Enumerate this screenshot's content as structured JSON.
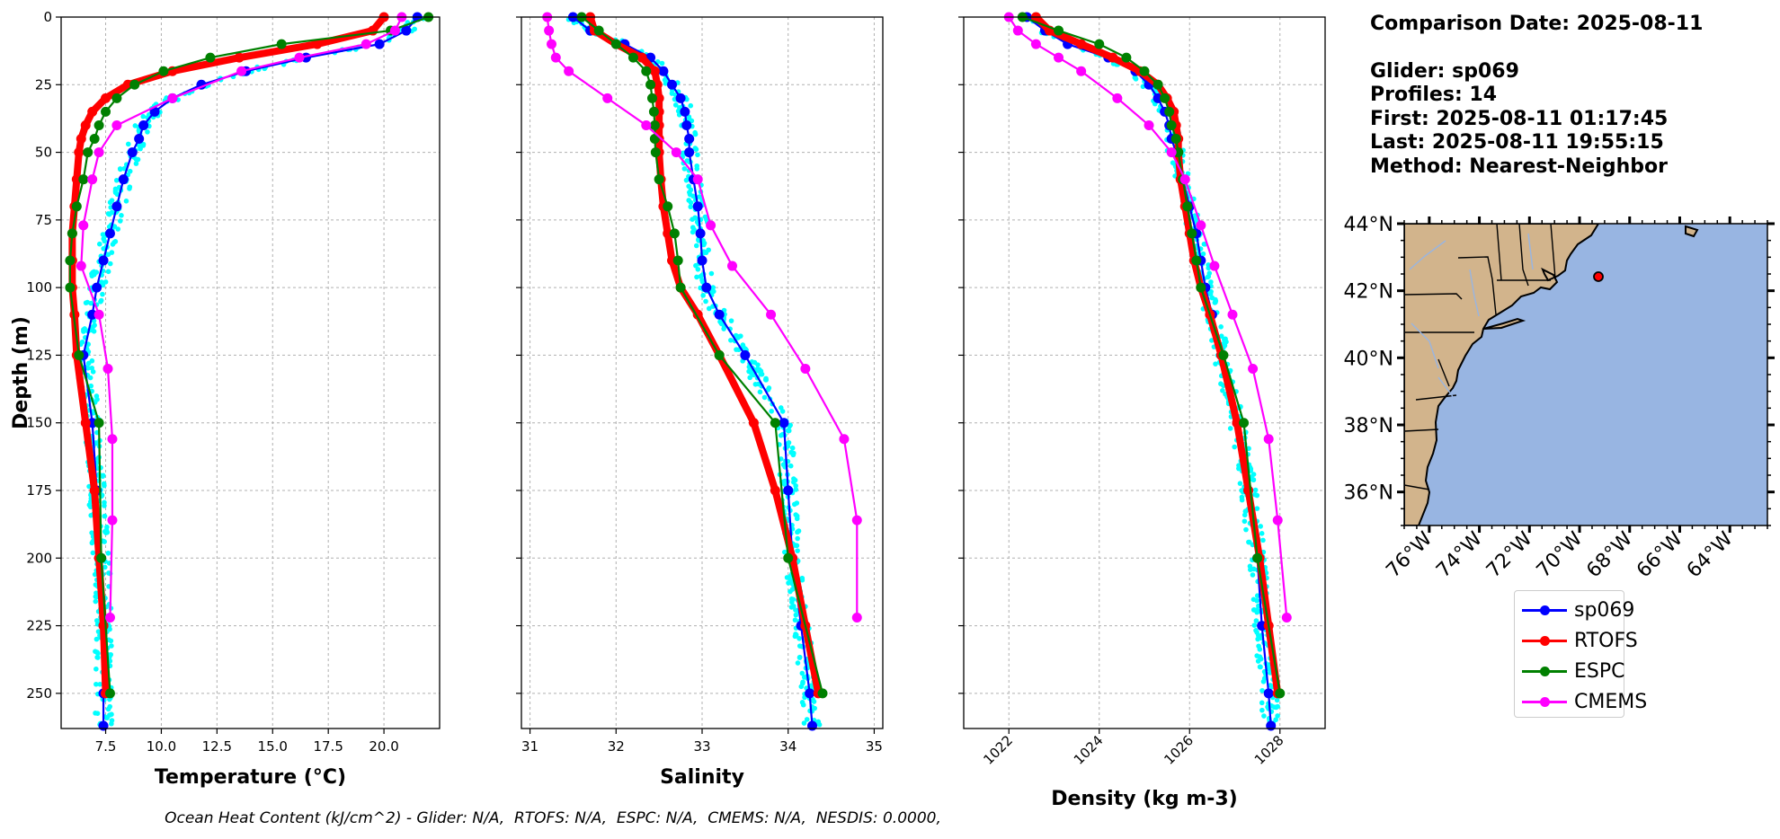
{
  "info": {
    "comparison_date": "Comparison Date: 2025-08-11",
    "glider": "Glider: sp069",
    "profiles": "Profiles: 14",
    "first": "First: 2025-08-11 01:17:45",
    "last": "Last: 2025-08-11 19:55:15",
    "method": "Method: Nearest-Neighbor"
  },
  "footer": "Ocean Heat Content (kJ/cm^2) - Glider: N/A,  RTOFS: N/A,  ESPC: N/A,  CMEMS: N/A,  NESDIS: 0.0000,",
  "legend": [
    {
      "name": "sp069",
      "color": "#0000ff"
    },
    {
      "name": "RTOFS",
      "color": "#ff0000"
    },
    {
      "name": "ESPC",
      "color": "#008000"
    },
    {
      "name": "CMEMS",
      "color": "#ff00ff"
    }
  ],
  "colors": {
    "glider_scatter": "#00ffff",
    "land": "#d2b48c",
    "ocean": "#98b5e2"
  },
  "map": {
    "lat_ticks": [
      "44°N",
      "42°N",
      "40°N",
      "38°N",
      "36°N"
    ],
    "lon_ticks": [
      "76°W",
      "74°W",
      "72°W",
      "70°W",
      "68°W",
      "66°W",
      "64°W"
    ],
    "glider_position": {
      "lat": 42.6,
      "lon": -69.8
    },
    "extent": {
      "lon": [
        -77.0,
        -62.5
      ],
      "lat": [
        35.0,
        44.0
      ]
    }
  },
  "chart_data": [
    {
      "type": "line",
      "xlabel": "Temperature (°C)",
      "ylabel": "Depth (m)",
      "xlim": [
        5.5,
        22.5
      ],
      "ylim": [
        263,
        0
      ],
      "xticks": [
        7.5,
        10.0,
        12.5,
        15.0,
        17.5,
        20.0
      ],
      "xtick_labels": [
        "7.5",
        "10.0",
        "12.5",
        "15.0",
        "17.5",
        "20.0"
      ],
      "yticks": [
        0,
        25,
        50,
        75,
        100,
        125,
        150,
        175,
        200,
        225,
        250
      ],
      "grid": true,
      "series": [
        {
          "name": "sp069",
          "depth": [
            0,
            5,
            10,
            15,
            20,
            25,
            30,
            35,
            40,
            45,
            50,
            60,
            70,
            80,
            90,
            100,
            110,
            125,
            150,
            175,
            200,
            225,
            250,
            262
          ],
          "values": [
            21.5,
            21.0,
            19.8,
            16.5,
            13.8,
            11.8,
            10.5,
            9.7,
            9.2,
            9.0,
            8.7,
            8.3,
            8.0,
            7.7,
            7.4,
            7.1,
            6.9,
            6.5,
            6.9,
            7.1,
            7.3,
            7.4,
            7.4,
            7.4
          ]
        },
        {
          "name": "RTOFS",
          "depth": [
            0,
            5,
            10,
            15,
            20,
            25,
            30,
            35,
            40,
            45,
            50,
            60,
            70,
            80,
            90,
            100,
            110,
            125,
            150,
            175,
            200,
            225,
            250
          ],
          "values": [
            20.0,
            19.5,
            17.0,
            13.5,
            10.5,
            8.5,
            7.5,
            6.9,
            6.6,
            6.4,
            6.3,
            6.2,
            6.1,
            6.0,
            6.0,
            6.0,
            6.1,
            6.2,
            6.6,
            7.0,
            7.2,
            7.4,
            7.5
          ]
        },
        {
          "name": "ESPC",
          "depth": [
            0,
            5,
            10,
            15,
            20,
            25,
            30,
            35,
            40,
            45,
            50,
            60,
            70,
            80,
            90,
            100,
            125,
            150,
            200,
            250
          ],
          "values": [
            22.0,
            20.3,
            15.4,
            12.2,
            10.1,
            8.8,
            8.0,
            7.5,
            7.2,
            7.0,
            6.7,
            6.5,
            6.2,
            6.0,
            5.9,
            5.9,
            6.3,
            7.2,
            7.3,
            7.7
          ]
        },
        {
          "name": "CMEMS",
          "depth": [
            0,
            5,
            10,
            15,
            20,
            30,
            40,
            50,
            60,
            77,
            92,
            110,
            130,
            156,
            186,
            222
          ],
          "values": [
            20.8,
            20.5,
            19.2,
            16.2,
            13.6,
            10.5,
            8.0,
            7.2,
            6.9,
            6.5,
            6.4,
            7.2,
            7.6,
            7.8,
            7.8,
            7.7
          ]
        }
      ]
    },
    {
      "type": "line",
      "xlabel": "Salinity",
      "xlim": [
        30.9,
        35.1
      ],
      "ylim": [
        263,
        0
      ],
      "xticks": [
        31,
        32,
        33,
        34,
        35
      ],
      "xtick_labels": [
        "31",
        "32",
        "33",
        "34",
        "35"
      ],
      "yticks": [
        0,
        25,
        50,
        75,
        100,
        125,
        150,
        175,
        200,
        225,
        250
      ],
      "grid": true,
      "series": [
        {
          "name": "sp069",
          "depth": [
            0,
            5,
            10,
            15,
            20,
            25,
            30,
            35,
            40,
            45,
            50,
            60,
            70,
            80,
            90,
            100,
            110,
            125,
            150,
            175,
            200,
            225,
            250,
            262
          ],
          "values": [
            31.5,
            31.7,
            32.1,
            32.4,
            32.55,
            32.65,
            32.75,
            32.8,
            32.82,
            32.85,
            32.85,
            32.9,
            32.95,
            32.98,
            33.0,
            33.05,
            33.2,
            33.5,
            33.95,
            34.0,
            34.05,
            34.15,
            34.25,
            34.28
          ]
        },
        {
          "name": "RTOFS",
          "depth": [
            0,
            5,
            10,
            15,
            20,
            25,
            30,
            35,
            40,
            45,
            50,
            60,
            70,
            80,
            90,
            100,
            110,
            125,
            150,
            175,
            200,
            225,
            250
          ],
          "values": [
            31.7,
            31.75,
            32.0,
            32.3,
            32.45,
            32.48,
            32.5,
            32.5,
            32.5,
            32.5,
            32.5,
            32.52,
            32.55,
            32.6,
            32.65,
            32.75,
            32.95,
            33.2,
            33.6,
            33.85,
            34.05,
            34.2,
            34.35
          ]
        },
        {
          "name": "ESPC",
          "depth": [
            0,
            5,
            10,
            15,
            20,
            25,
            30,
            35,
            40,
            45,
            50,
            60,
            70,
            80,
            90,
            100,
            125,
            150,
            200,
            250
          ],
          "values": [
            31.6,
            31.8,
            32.0,
            32.2,
            32.35,
            32.4,
            32.42,
            32.44,
            32.45,
            32.45,
            32.46,
            32.5,
            32.6,
            32.68,
            32.72,
            32.75,
            33.2,
            33.85,
            34.0,
            34.4
          ]
        },
        {
          "name": "CMEMS",
          "depth": [
            0,
            5,
            10,
            15,
            20,
            30,
            40,
            50,
            60,
            77,
            92,
            110,
            130,
            156,
            186,
            222
          ],
          "values": [
            31.2,
            31.22,
            31.25,
            31.3,
            31.45,
            31.9,
            32.35,
            32.7,
            32.95,
            33.1,
            33.35,
            33.8,
            34.2,
            34.65,
            34.8,
            34.8
          ]
        }
      ]
    },
    {
      "type": "line",
      "xlabel": "Density (kg m-3)",
      "xlim": [
        1021.0,
        1029.0
      ],
      "ylim": [
        263,
        0
      ],
      "xticks": [
        1022,
        1024,
        1026,
        1028
      ],
      "xtick_labels": [
        "1022",
        "1024",
        "1026",
        "1028"
      ],
      "yticks": [
        0,
        25,
        50,
        75,
        100,
        125,
        150,
        175,
        200,
        225,
        250
      ],
      "grid": true,
      "series": [
        {
          "name": "sp069",
          "depth": [
            0,
            5,
            10,
            15,
            20,
            25,
            30,
            35,
            40,
            45,
            50,
            60,
            70,
            80,
            90,
            100,
            110,
            125,
            150,
            175,
            200,
            225,
            250,
            262
          ],
          "values": [
            1022.4,
            1022.8,
            1023.3,
            1024.2,
            1024.8,
            1025.1,
            1025.3,
            1025.45,
            1025.55,
            1025.6,
            1025.7,
            1025.85,
            1026.0,
            1026.15,
            1026.25,
            1026.35,
            1026.5,
            1026.7,
            1027.05,
            1027.3,
            1027.5,
            1027.6,
            1027.75,
            1027.8
          ]
        },
        {
          "name": "RTOFS",
          "depth": [
            0,
            5,
            10,
            15,
            20,
            25,
            30,
            35,
            40,
            45,
            50,
            60,
            70,
            80,
            90,
            100,
            110,
            125,
            150,
            175,
            200,
            225,
            250
          ],
          "values": [
            1022.6,
            1022.9,
            1023.6,
            1024.3,
            1024.9,
            1025.3,
            1025.5,
            1025.65,
            1025.7,
            1025.75,
            1025.75,
            1025.8,
            1025.9,
            1026.0,
            1026.1,
            1026.25,
            1026.45,
            1026.7,
            1027.05,
            1027.3,
            1027.55,
            1027.75,
            1027.95
          ]
        },
        {
          "name": "ESPC",
          "depth": [
            0,
            5,
            10,
            15,
            20,
            25,
            30,
            35,
            40,
            45,
            50,
            60,
            70,
            80,
            90,
            100,
            125,
            150,
            200,
            250
          ],
          "values": [
            1022.3,
            1023.1,
            1024.0,
            1024.6,
            1025.0,
            1025.3,
            1025.45,
            1025.55,
            1025.6,
            1025.7,
            1025.75,
            1025.85,
            1025.95,
            1026.05,
            1026.15,
            1026.25,
            1026.75,
            1027.2,
            1027.5,
            1028.0
          ]
        },
        {
          "name": "CMEMS",
          "depth": [
            0,
            5,
            10,
            15,
            20,
            30,
            40,
            50,
            60,
            77,
            92,
            110,
            130,
            156,
            186,
            222
          ],
          "values": [
            1022.0,
            1022.2,
            1022.6,
            1023.1,
            1023.6,
            1024.4,
            1025.1,
            1025.6,
            1025.9,
            1026.25,
            1026.55,
            1026.95,
            1027.4,
            1027.75,
            1027.95,
            1028.15
          ]
        }
      ]
    }
  ]
}
